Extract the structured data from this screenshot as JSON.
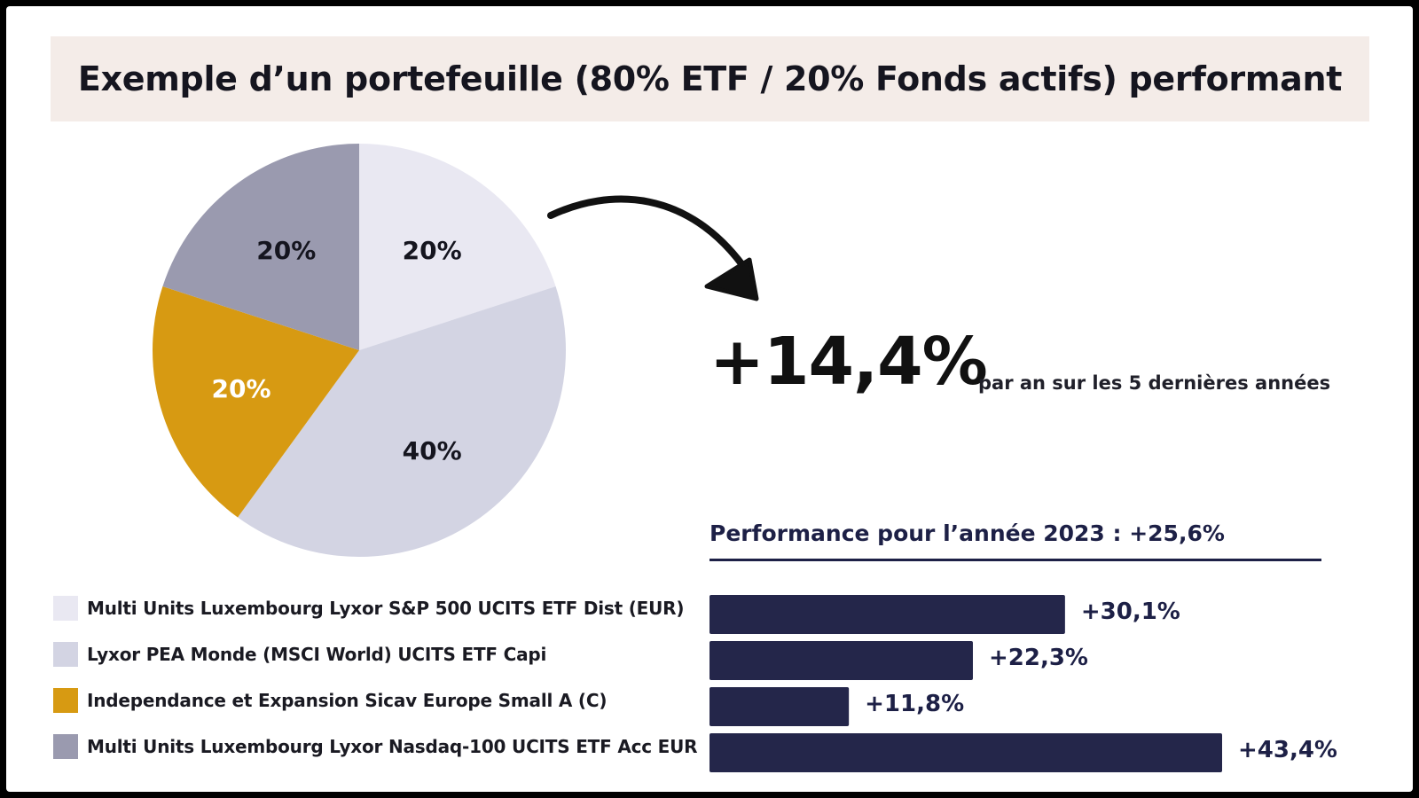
{
  "title": "Exemple d’un portefeuille (80% ETF / 20% Fonds actifs) performant",
  "headline": {
    "value": "+14,4%",
    "caption": "par an sur les 5 dernières années"
  },
  "bars_title": "Performance pour l’année 2023 : +25,6%",
  "chart_data": [
    {
      "type": "pie",
      "slices": [
        {
          "name": "Multi Units Luxembourg Lyxor S&P 500 UCITS ETF Dist (EUR)",
          "value": 20,
          "label": "20%",
          "color": "#e9e8f2",
          "label_color": "#15151f"
        },
        {
          "name": "Lyxor PEA Monde (MSCI World) UCITS ETF Capi",
          "value": 40,
          "label": "40%",
          "color": "#d3d4e3",
          "label_color": "#15151f"
        },
        {
          "name": "Independance et Expansion Sicav Europe Small A (C)",
          "value": 20,
          "label": "20%",
          "color": "#d79a12",
          "label_color": "#ffffff"
        },
        {
          "name": "Multi Units Luxembourg Lyxor Nasdaq-100 UCITS ETF Acc EUR",
          "value": 20,
          "label": "20%",
          "color": "#9a9aaf",
          "label_color": "#15151f"
        }
      ]
    },
    {
      "type": "bar",
      "orientation": "horizontal",
      "categories": [
        "Multi Units Luxembourg Lyxor S&P 500 UCITS ETF Dist (EUR)",
        "Lyxor PEA Monde (MSCI World) UCITS ETF Capi",
        "Independance et Expansion Sicav Europe Small A (C)",
        "Multi Units Luxembourg Lyxor Nasdaq-100 UCITS ETF Acc EUR"
      ],
      "values": [
        30.1,
        22.3,
        11.8,
        43.4
      ],
      "labels": [
        "+30,1%",
        "+22,3%",
        "+11,8%",
        "+43,4%"
      ],
      "bar_color": "#24264a"
    }
  ],
  "legend": [
    {
      "label": "Multi Units Luxembourg Lyxor S&P 500 UCITS ETF Dist (EUR)",
      "color": "#e9e8f2"
    },
    {
      "label": "Lyxor PEA Monde (MSCI World) UCITS ETF Capi",
      "color": "#d3d4e3"
    },
    {
      "label": "Independance et Expansion Sicav Europe Small A (C)",
      "color": "#d79a12"
    },
    {
      "label": "Multi Units Luxembourg Lyxor Nasdaq-100 UCITS ETF Acc EUR",
      "color": "#9a9aaf"
    }
  ]
}
